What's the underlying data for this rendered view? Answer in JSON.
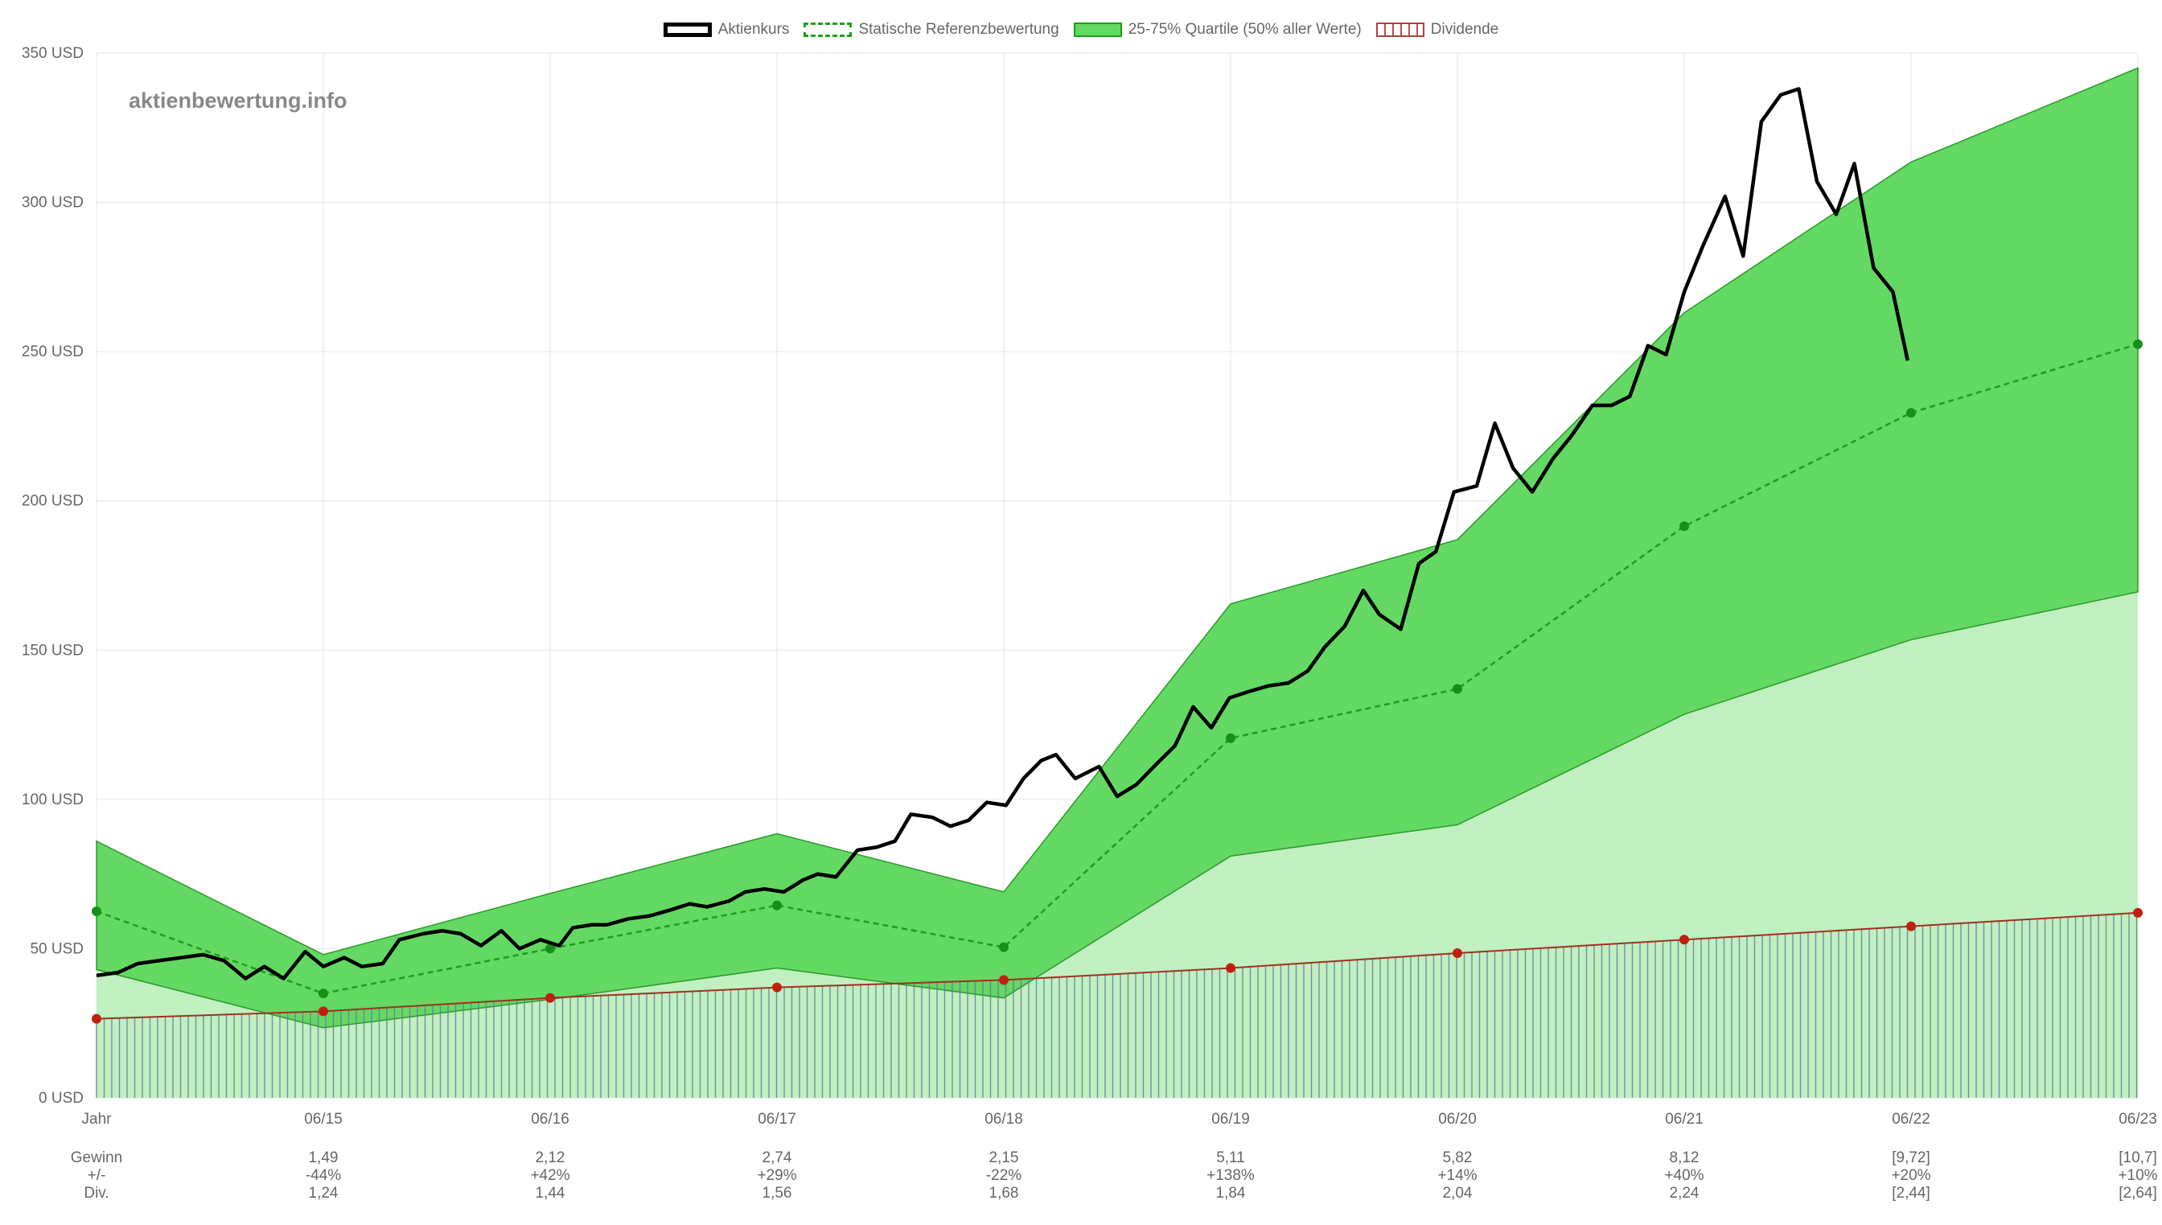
{
  "watermark": "aktienbewertung.info",
  "legend": {
    "price": "Aktienkurs",
    "reference": "Statische Referenzbewertung",
    "band": "25-75% Quartile (50% aller Werte)",
    "dividend": "Dividende"
  },
  "row_labels": [
    "Gewinn",
    "+/-",
    "Div."
  ],
  "colors": {
    "price": "#000000",
    "reference": "#1e9e1e",
    "band_fill": "#63d963",
    "lower_fill": "#c0f0c0",
    "dividend": "#a03020",
    "grid": "#e6e6e6"
  },
  "chart_data": {
    "type": "line",
    "ylim": [
      0,
      350
    ],
    "yticks": [
      0,
      50,
      100,
      150,
      200,
      250,
      300,
      350
    ],
    "ytick_suffix": " USD",
    "x_labels": [
      "Jahr",
      "06/15",
      "06/16",
      "06/17",
      "06/18",
      "06/19",
      "06/20",
      "06/21",
      "06/22",
      "06/23"
    ],
    "table": [
      {
        "gewinn": "",
        "change": "",
        "div": ""
      },
      {
        "gewinn": "1,49",
        "change": "-44%",
        "div": "1,24"
      },
      {
        "gewinn": "2,12",
        "change": "+42%",
        "div": "1,44"
      },
      {
        "gewinn": "2,74",
        "change": "+29%",
        "div": "1,56"
      },
      {
        "gewinn": "2,15",
        "change": "-22%",
        "div": "1,68"
      },
      {
        "gewinn": "5,11",
        "change": "+138%",
        "div": "1,84"
      },
      {
        "gewinn": "5,82",
        "change": "+14%",
        "div": "2,04"
      },
      {
        "gewinn": "8,12",
        "change": "+40%",
        "div": "2,24"
      },
      {
        "gewinn": "[9,72]",
        "change": "+20%",
        "div": "[2,44]"
      },
      {
        "gewinn": "[10,7]",
        "change": "+10%",
        "div": "[2,64]"
      }
    ],
    "series": [
      {
        "name": "Statische Referenzbewertung",
        "values": [
          62.5,
          35,
          50,
          64.5,
          50.5,
          120.5,
          137,
          191.5,
          229.5,
          252.5
        ]
      },
      {
        "name": "Dividende",
        "values": [
          26.5,
          29,
          33.5,
          37,
          39.5,
          43.5,
          48.5,
          53,
          57.5,
          62
        ]
      }
    ],
    "band_upper": [
      86,
      48,
      68.5,
      88.5,
      69,
      165.5,
      187,
      263,
      313.5,
      345
    ],
    "band_lower": [
      43,
      23.5,
      33,
      43.5,
      33.5,
      81,
      91.5,
      128.5,
      153.5,
      169.5
    ],
    "price": [
      [
        0.0,
        41
      ],
      [
        0.095,
        42
      ],
      [
        0.182,
        45
      ],
      [
        0.277,
        46
      ],
      [
        0.375,
        47
      ],
      [
        0.469,
        48
      ],
      [
        0.562,
        46
      ],
      [
        0.657,
        40
      ],
      [
        0.74,
        44
      ],
      [
        0.825,
        40
      ],
      [
        0.92,
        49
      ],
      [
        1.0,
        44
      ],
      [
        1.092,
        47
      ],
      [
        1.17,
        44
      ],
      [
        1.262,
        45
      ],
      [
        1.335,
        53
      ],
      [
        1.44,
        55
      ],
      [
        1.525,
        56
      ],
      [
        1.605,
        55
      ],
      [
        1.695,
        51
      ],
      [
        1.785,
        56
      ],
      [
        1.865,
        50
      ],
      [
        1.957,
        53
      ],
      [
        2.04,
        51
      ],
      [
        2.1,
        57
      ],
      [
        2.185,
        58
      ],
      [
        2.25,
        58
      ],
      [
        2.345,
        60
      ],
      [
        2.44,
        61
      ],
      [
        2.532,
        63
      ],
      [
        2.615,
        65
      ],
      [
        2.692,
        64
      ],
      [
        2.79,
        66
      ],
      [
        2.86,
        69
      ],
      [
        2.945,
        70
      ],
      [
        3.03,
        69
      ],
      [
        3.115,
        73
      ],
      [
        3.18,
        75
      ],
      [
        3.26,
        74
      ],
      [
        3.355,
        83
      ],
      [
        3.44,
        84
      ],
      [
        3.52,
        86
      ],
      [
        3.59,
        95
      ],
      [
        3.685,
        94
      ],
      [
        3.765,
        91
      ],
      [
        3.845,
        93
      ],
      [
        3.925,
        99
      ],
      [
        4.01,
        98
      ],
      [
        4.087,
        107
      ],
      [
        4.165,
        113
      ],
      [
        4.23,
        115
      ],
      [
        4.315,
        107
      ],
      [
        4.42,
        111
      ],
      [
        4.5,
        101
      ],
      [
        4.585,
        105
      ],
      [
        4.675,
        112
      ],
      [
        4.755,
        118
      ],
      [
        4.835,
        131
      ],
      [
        4.915,
        124
      ],
      [
        4.995,
        134
      ],
      [
        5.075,
        136
      ],
      [
        5.165,
        138
      ],
      [
        5.255,
        139
      ],
      [
        5.34,
        143
      ],
      [
        5.415,
        151
      ],
      [
        5.503,
        158
      ],
      [
        5.585,
        170
      ],
      [
        5.655,
        162
      ],
      [
        5.75,
        157
      ],
      [
        5.83,
        179
      ],
      [
        5.905,
        183
      ],
      [
        5.985,
        203
      ],
      [
        6.085,
        205
      ],
      [
        6.165,
        226
      ],
      [
        6.245,
        211
      ],
      [
        6.33,
        203
      ],
      [
        6.42,
        214
      ],
      [
        6.505,
        222
      ],
      [
        6.595,
        232
      ],
      [
        6.68,
        232
      ],
      [
        6.76,
        235
      ],
      [
        6.84,
        252
      ],
      [
        6.92,
        249
      ],
      [
        7.0,
        270
      ],
      [
        7.08,
        285
      ],
      [
        7.18,
        302
      ],
      [
        7.26,
        282
      ],
      [
        7.34,
        327
      ],
      [
        7.425,
        336
      ],
      [
        7.505,
        338
      ],
      [
        7.585,
        307
      ],
      [
        7.67,
        296
      ],
      [
        7.75,
        313
      ],
      [
        7.835,
        278
      ],
      [
        7.92,
        270
      ],
      [
        7.985,
        247
      ]
    ]
  }
}
